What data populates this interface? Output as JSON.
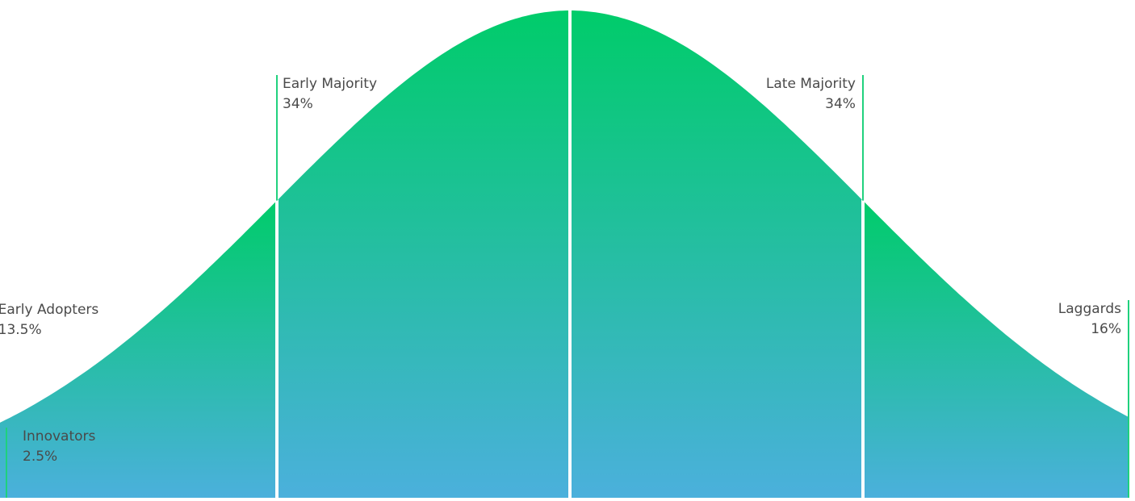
{
  "chart_data": {
    "type": "area",
    "title": "",
    "xlabel": "",
    "ylabel": "",
    "grid": false,
    "legend": "none",
    "distribution": "normal",
    "segments": [
      {
        "name": "Innovators",
        "percent_label": "2.5%",
        "share": 2.5,
        "label_align": "left"
      },
      {
        "name": "Early Adopters",
        "percent_label": "13.5%",
        "share": 13.5,
        "label_align": "left"
      },
      {
        "name": "Early Majority",
        "percent_label": "34%",
        "share": 34,
        "label_align": "left"
      },
      {
        "name": "Late Majority",
        "percent_label": "34%",
        "share": 34,
        "label_align": "right"
      },
      {
        "name": "Laggards",
        "percent_label": "16%",
        "share": 16,
        "label_align": "right"
      }
    ],
    "colors": {
      "fill_top": "#00cc6a",
      "fill_bottom": "#4bb0dc",
      "divider_line": "#1fd17d",
      "separator": "#ffffff",
      "label_text": "#4a4a4a"
    }
  }
}
